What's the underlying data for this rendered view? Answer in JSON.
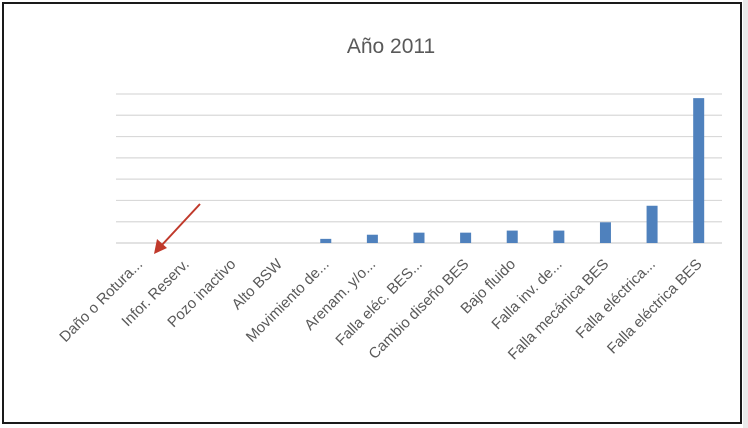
{
  "chart_data": {
    "type": "bar",
    "title": "Año 2011",
    "xlabel": "",
    "ylabel": "",
    "categories": [
      "Daño o Rotura...",
      "Infor. Reserv.",
      "Pozo inactivo",
      "Alto BSW",
      "Movimiento de...",
      "Arenam. y/o...",
      "Falla eléc. BES...",
      "Cambio diseño BES",
      "Bajo fluido",
      "Falla inv. de...",
      "Falla mecánica BES",
      "Falla eléctrica...",
      "Falla eléctrica BES"
    ],
    "values": [
      0,
      0,
      0,
      0,
      1,
      2,
      2.5,
      2.5,
      3,
      3,
      5,
      9,
      35
    ],
    "ylim": [
      0,
      36
    ],
    "grid": true,
    "legend": "none",
    "bar_color": "#4f81bd",
    "grid_color": "#d9d9d9",
    "annotation": {
      "type": "arrow",
      "target": "Daño o Rotura...",
      "color": "#c0392b"
    }
  }
}
